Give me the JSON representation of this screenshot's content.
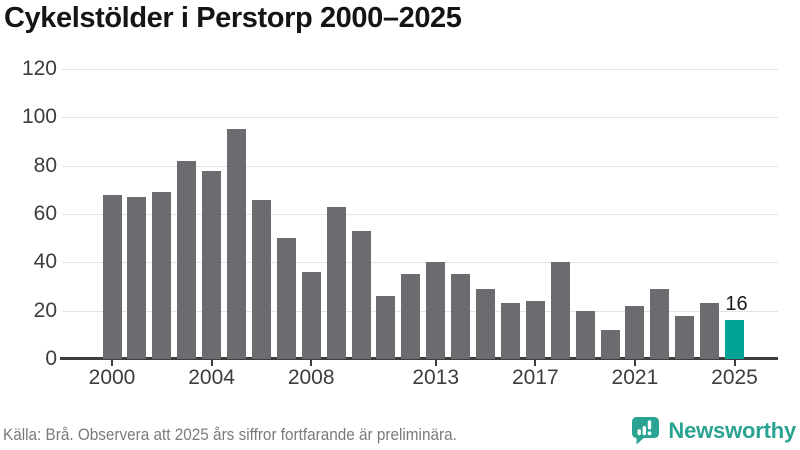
{
  "title": "Cykelstölder i Perstorp 2000–2025",
  "footer": {
    "source_note": "Källa: Brå. Observera att 2025 års siffror fortfarande är preliminära.",
    "brand": "Newsworthy"
  },
  "colors": {
    "bar": "#6d6a70",
    "highlight": "#00a496",
    "gridline": "#e4e4e4",
    "axis": "#3e3e3e",
    "tick_label": "#3d3d3d",
    "title": "#151515",
    "footer_text": "#7a7a7a",
    "brand_teal": "#2aa392"
  },
  "chart_data": {
    "type": "bar",
    "title": "Cykelstölder i Perstorp 2000–2025",
    "categories": [
      2000,
      2001,
      2002,
      2003,
      2004,
      2005,
      2006,
      2007,
      2008,
      2009,
      2010,
      2011,
      2012,
      2013,
      2014,
      2015,
      2016,
      2017,
      2018,
      2019,
      2020,
      2021,
      2022,
      2023,
      2024,
      2025
    ],
    "values": [
      68,
      67,
      69,
      82,
      78,
      95,
      66,
      50,
      36,
      63,
      53,
      26,
      35,
      40,
      35,
      29,
      23,
      24,
      40,
      20,
      12,
      22,
      29,
      18,
      23,
      16
    ],
    "xlabel": "",
    "ylabel": "",
    "ylim": [
      0,
      120
    ],
    "yticks": [
      0,
      20,
      40,
      60,
      80,
      100,
      120
    ],
    "xtick_labels": [
      2000,
      2004,
      2008,
      2013,
      2017,
      2021,
      2025
    ],
    "grid": true,
    "legend": "none",
    "highlight_category": 2025,
    "highlight_value_label": "16"
  }
}
